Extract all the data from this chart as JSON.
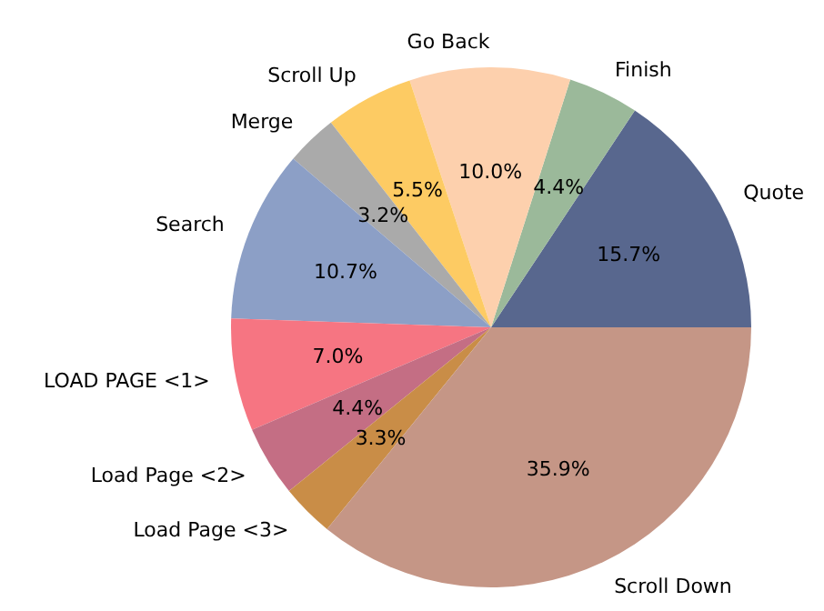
{
  "chart_data": {
    "type": "pie",
    "categories": [
      "Quote",
      "Finish",
      "Go Back",
      "Scroll Up",
      "Merge",
      "Search",
      "LOAD PAGE <1>",
      "Load Page <2>",
      "Load Page <3>",
      "Scroll Down"
    ],
    "values": [
      15.7,
      4.4,
      10.0,
      5.5,
      3.2,
      10.7,
      7.0,
      4.4,
      3.3,
      35.9
    ],
    "value_labels": [
      "15.7%",
      "4.4%",
      "10.0%",
      "5.5%",
      "3.2%",
      "10.7%",
      "7.0%",
      "4.4%",
      "3.3%",
      "35.9%"
    ],
    "colors": [
      "#58678e",
      "#9bb99a",
      "#fdd0ad",
      "#fdcb63",
      "#aaaaaa",
      "#8c9fc6",
      "#f67582",
      "#c46e84",
      "#c98d47",
      "#c59686"
    ]
  }
}
